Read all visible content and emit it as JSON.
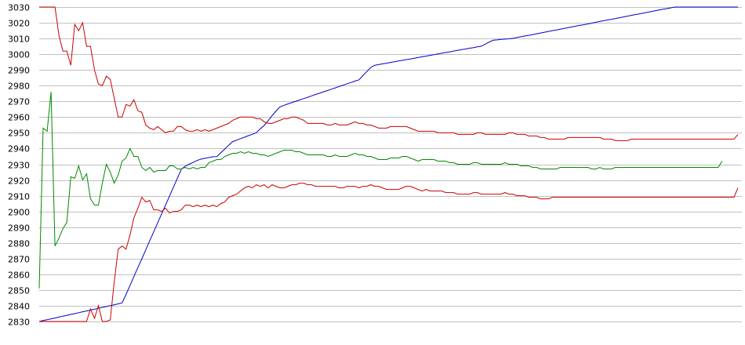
{
  "chart_data": {
    "type": "line",
    "title": "",
    "xlabel": "",
    "ylabel": "",
    "ylim": [
      2830,
      3030
    ],
    "yticks": [
      2830,
      2840,
      2850,
      2860,
      2870,
      2880,
      2890,
      2900,
      2910,
      2920,
      2930,
      2940,
      2950,
      2960,
      2970,
      2980,
      2990,
      3000,
      3010,
      3020,
      3030
    ],
    "ytick_labels": [
      "2830",
      "2840",
      "2850",
      "2860",
      "2870",
      "2880",
      "2890",
      "2900",
      "2910",
      "2920",
      "2930",
      "2940",
      "2950",
      "2960",
      "2970",
      "2980",
      "2990",
      "3000",
      "3010",
      "3020",
      "3030"
    ],
    "grid": "horizontal",
    "x": {
      "start": 0,
      "end": 178,
      "step": 1
    },
    "series": [
      {
        "color": "#0000cc",
        "values": [
          2830.0,
          2830.6,
          2831.1,
          2831.7,
          2832.2,
          2832.8,
          2833.4,
          2833.9,
          2834.5,
          2835.0,
          2835.6,
          2836.2,
          2836.7,
          2837.3,
          2837.8,
          2838.4,
          2839.0,
          2839.5,
          2840.1,
          2840.6,
          2841.2,
          2841.8,
          2847.2,
          2852.9,
          2858.6,
          2864.3,
          2869.9,
          2875.6,
          2881.3,
          2887.0,
          2892.7,
          2898.4,
          2904.0,
          2909.7,
          2915.4,
          2921.1,
          2926.8,
          2928.8,
          2930.0,
          2931.2,
          2932.4,
          2933.3,
          2933.8,
          2934.3,
          2934.8,
          2934.9,
          2937.3,
          2939.7,
          2942.1,
          2944.4,
          2945.3,
          2946.3,
          2947.2,
          2948.2,
          2949.1,
          2950.1,
          2952.6,
          2954.7,
          2957.8,
          2960.9,
          2963.9,
          2966.5,
          2967.5,
          2968.4,
          2969.2,
          2970.1,
          2970.9,
          2971.8,
          2972.6,
          2973.5,
          2974.4,
          2975.2,
          2976.1,
          2976.9,
          2977.8,
          2978.6,
          2979.5,
          2980.3,
          2981.2,
          2982.0,
          2982.9,
          2983.7,
          2986.4,
          2989.0,
          2991.6,
          2993.0,
          2993.4,
          2993.9,
          2994.3,
          2994.8,
          2995.2,
          2995.7,
          2996.1,
          2996.6,
          2997.0,
          2997.5,
          2997.9,
          2998.4,
          2998.8,
          2999.3,
          2999.7,
          3000.2,
          3000.6,
          3001.1,
          3001.5,
          3002.0,
          3002.4,
          3002.9,
          3003.3,
          3003.8,
          3004.2,
          3004.7,
          3005.1,
          3006.4,
          3007.7,
          3008.9,
          3009.1,
          3009.4,
          3009.6,
          3009.8,
          3010.1,
          3010.6,
          3011.1,
          3011.6,
          3012.0,
          3012.5,
          3013.0,
          3013.5,
          3014.0,
          3014.5,
          3015.0,
          3015.4,
          3015.9,
          3016.4,
          3016.9,
          3017.4,
          3017.9,
          3018.4,
          3018.8,
          3019.3,
          3019.8,
          3020.3,
          3020.8,
          3021.3,
          3021.8,
          3022.2,
          3022.7,
          3023.2,
          3023.7,
          3024.2,
          3024.7,
          3025.2,
          3025.6,
          3026.1,
          3026.6,
          3027.1,
          3027.6,
          3028.1,
          3028.6,
          3029.0,
          3029.5,
          3030.0,
          3030.3,
          3030.6,
          3030.9,
          3031.2,
          3031.5,
          3031.8,
          3032.1,
          3032.4,
          3032.7,
          3033.0,
          3033.3,
          3033.6,
          3033.9,
          3034.2,
          3034.5,
          3034.8
        ]
      },
      {
        "color": "#cc0000",
        "values": [
          3030,
          3030,
          3030,
          3030,
          3030,
          3012,
          3002,
          3002,
          2993,
          3019,
          3015,
          3020,
          3005,
          3005,
          2990,
          2981,
          2980,
          2986,
          2984,
          2972,
          2960,
          2960,
          2968,
          2967,
          2971,
          2964,
          2963,
          2955,
          2953,
          2952,
          2954,
          2952,
          2950,
          2951,
          2951,
          2954,
          2954,
          2952,
          2951,
          2951,
          2952,
          2951,
          2952,
          2951,
          2952,
          2953,
          2954,
          2955,
          2956,
          2958,
          2959,
          2960,
          2960,
          2960,
          2960,
          2959,
          2959,
          2957,
          2956,
          2956,
          2957,
          2958,
          2959,
          2959,
          2960,
          2960,
          2959,
          2958,
          2956,
          2956,
          2956,
          2956,
          2956,
          2955,
          2955,
          2956,
          2955,
          2955,
          2955,
          2956,
          2957,
          2956,
          2956,
          2955,
          2955,
          2954,
          2953,
          2953,
          2953,
          2954,
          2954,
          2954,
          2954,
          2954,
          2953,
          2952,
          2951,
          2951,
          2951,
          2951,
          2951,
          2950,
          2950,
          2950,
          2950,
          2950,
          2949,
          2949,
          2949,
          2949,
          2949,
          2950,
          2950,
          2949,
          2949,
          2949,
          2949,
          2949,
          2949,
          2950,
          2950,
          2949,
          2949,
          2949,
          2948,
          2948,
          2948,
          2947,
          2947,
          2946,
          2946,
          2946,
          2946,
          2946,
          2947,
          2947,
          2947,
          2947,
          2947,
          2947,
          2947,
          2947,
          2947,
          2946,
          2946,
          2946,
          2945,
          2945,
          2945,
          2945,
          2946,
          2946,
          2946,
          2946,
          2946,
          2946,
          2946,
          2946,
          2946,
          2946,
          2946,
          2946,
          2946,
          2946,
          2946,
          2946,
          2946,
          2946,
          2946,
          2946,
          2946,
          2946,
          2946,
          2946,
          2946,
          2946,
          2946,
          2949
        ]
      },
      {
        "color": "#008800",
        "values": [
          2851,
          2953,
          2951,
          2976,
          2878,
          2883,
          2889,
          2893,
          2922,
          2921,
          2929,
          2920,
          2924,
          2908,
          2904,
          2904,
          2918,
          2930,
          2925,
          2918,
          2923,
          2932,
          2934,
          2940,
          2935,
          2935,
          2928,
          2926,
          2928,
          2925,
          2926,
          2926,
          2926,
          2929,
          2929,
          2927,
          2927,
          2928,
          2927,
          2928,
          2927,
          2928,
          2928,
          2931,
          2932,
          2933,
          2933,
          2935,
          2936,
          2937,
          2937,
          2938,
          2937,
          2938,
          2937,
          2937,
          2936,
          2936,
          2935,
          2936,
          2937,
          2938,
          2939,
          2939,
          2939,
          2938,
          2938,
          2937,
          2936,
          2936,
          2936,
          2936,
          2936,
          2935,
          2935,
          2936,
          2935,
          2935,
          2935,
          2936,
          2937,
          2936,
          2936,
          2935,
          2935,
          2934,
          2933,
          2933,
          2933,
          2934,
          2934,
          2934,
          2935,
          2935,
          2934,
          2933,
          2932,
          2933,
          2933,
          2933,
          2933,
          2932,
          2932,
          2932,
          2931,
          2931,
          2930,
          2930,
          2930,
          2930,
          2931,
          2931,
          2930,
          2930,
          2930,
          2930,
          2930,
          2930,
          2931,
          2930,
          2930,
          2930,
          2929,
          2929,
          2929,
          2928,
          2928,
          2927,
          2927,
          2927,
          2927,
          2927,
          2928,
          2928,
          2928,
          2928,
          2928,
          2928,
          2928,
          2928,
          2927,
          2927,
          2928,
          2927,
          2927,
          2927,
          2928,
          2928,
          2928,
          2928,
          2928,
          2928,
          2928,
          2928,
          2928,
          2928,
          2928,
          2928,
          2928,
          2928,
          2928,
          2928,
          2928,
          2928,
          2928,
          2928,
          2928,
          2928,
          2928,
          2928,
          2928,
          2928,
          2928,
          2932
        ]
      },
      {
        "color": "#cc0000",
        "values": [
          2830,
          2830,
          2830,
          2830,
          2830,
          2830,
          2830,
          2830,
          2830,
          2830,
          2830,
          2830,
          2830,
          2838,
          2832,
          2840,
          2830,
          2830,
          2831,
          2855,
          2876,
          2878,
          2876,
          2885,
          2896,
          2902,
          2909,
          2906,
          2907,
          2901,
          2901,
          2900,
          2902,
          2899,
          2900,
          2900,
          2901,
          2904,
          2904,
          2903,
          2904,
          2903,
          2904,
          2903,
          2904,
          2903,
          2905,
          2906,
          2909,
          2910,
          2911,
          2913,
          2915,
          2916,
          2915,
          2917,
          2916,
          2917,
          2915,
          2917,
          2916,
          2915,
          2915,
          2916,
          2917,
          2917,
          2918,
          2918,
          2917,
          2917,
          2916,
          2916,
          2916,
          2916,
          2916,
          2916,
          2915,
          2915,
          2916,
          2916,
          2916,
          2915,
          2916,
          2916,
          2917,
          2916,
          2916,
          2915,
          2914,
          2914,
          2914,
          2914,
          2915,
          2916,
          2916,
          2915,
          2914,
          2913,
          2914,
          2913,
          2913,
          2913,
          2913,
          2912,
          2912,
          2912,
          2911,
          2911,
          2911,
          2911,
          2912,
          2912,
          2911,
          2911,
          2911,
          2911,
          2911,
          2911,
          2912,
          2911,
          2911,
          2910,
          2910,
          2910,
          2909,
          2909,
          2909,
          2908,
          2908,
          2908,
          2909,
          2909,
          2909,
          2909,
          2909,
          2909,
          2909,
          2909,
          2909,
          2909,
          2909,
          2909,
          2909,
          2909,
          2909,
          2909,
          2909,
          2909,
          2909,
          2909,
          2909,
          2909,
          2909,
          2909,
          2909,
          2909,
          2909,
          2909,
          2909,
          2909,
          2909,
          2909,
          2909,
          2909,
          2909,
          2909,
          2909,
          2909,
          2909,
          2909,
          2909,
          2909,
          2909,
          2909,
          2909,
          2909,
          2909,
          2915
        ]
      }
    ]
  }
}
